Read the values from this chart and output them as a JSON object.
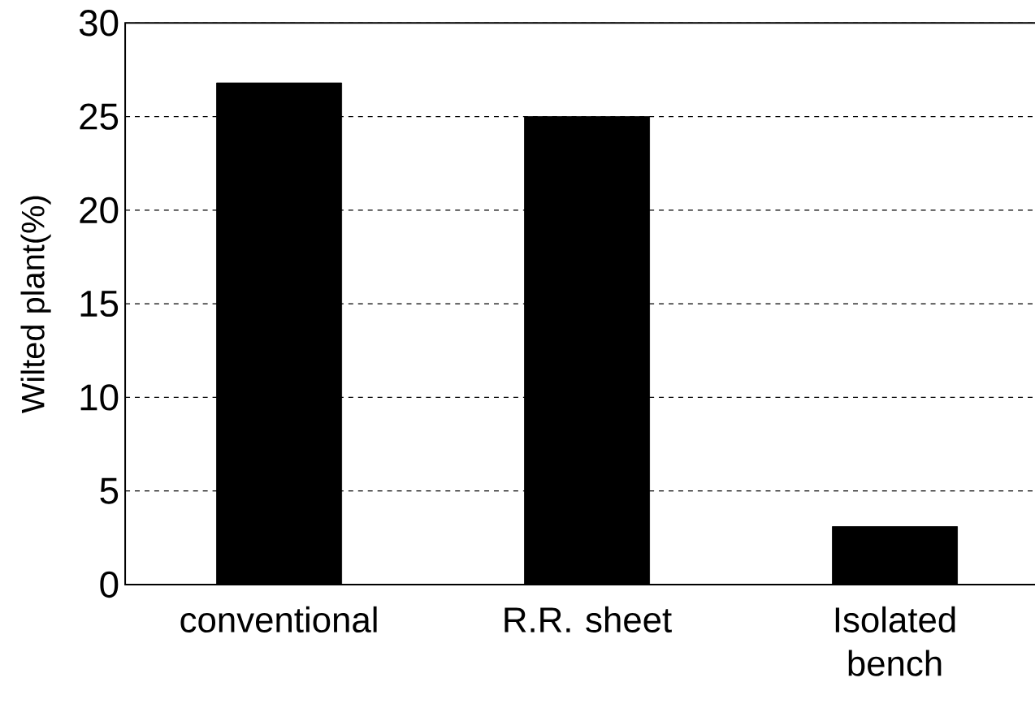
{
  "chart_data": {
    "type": "bar",
    "ylabel": "Wilted plant(%)",
    "categories": [
      "conventional",
      "R.R. sheet",
      "Isolated bench"
    ],
    "values": [
      26.8,
      25.0,
      3.1
    ],
    "color": "#000000",
    "ylim": [
      0,
      30
    ],
    "yticks": [
      0,
      5,
      10,
      15,
      20,
      25,
      30
    ],
    "grid": "y"
  }
}
